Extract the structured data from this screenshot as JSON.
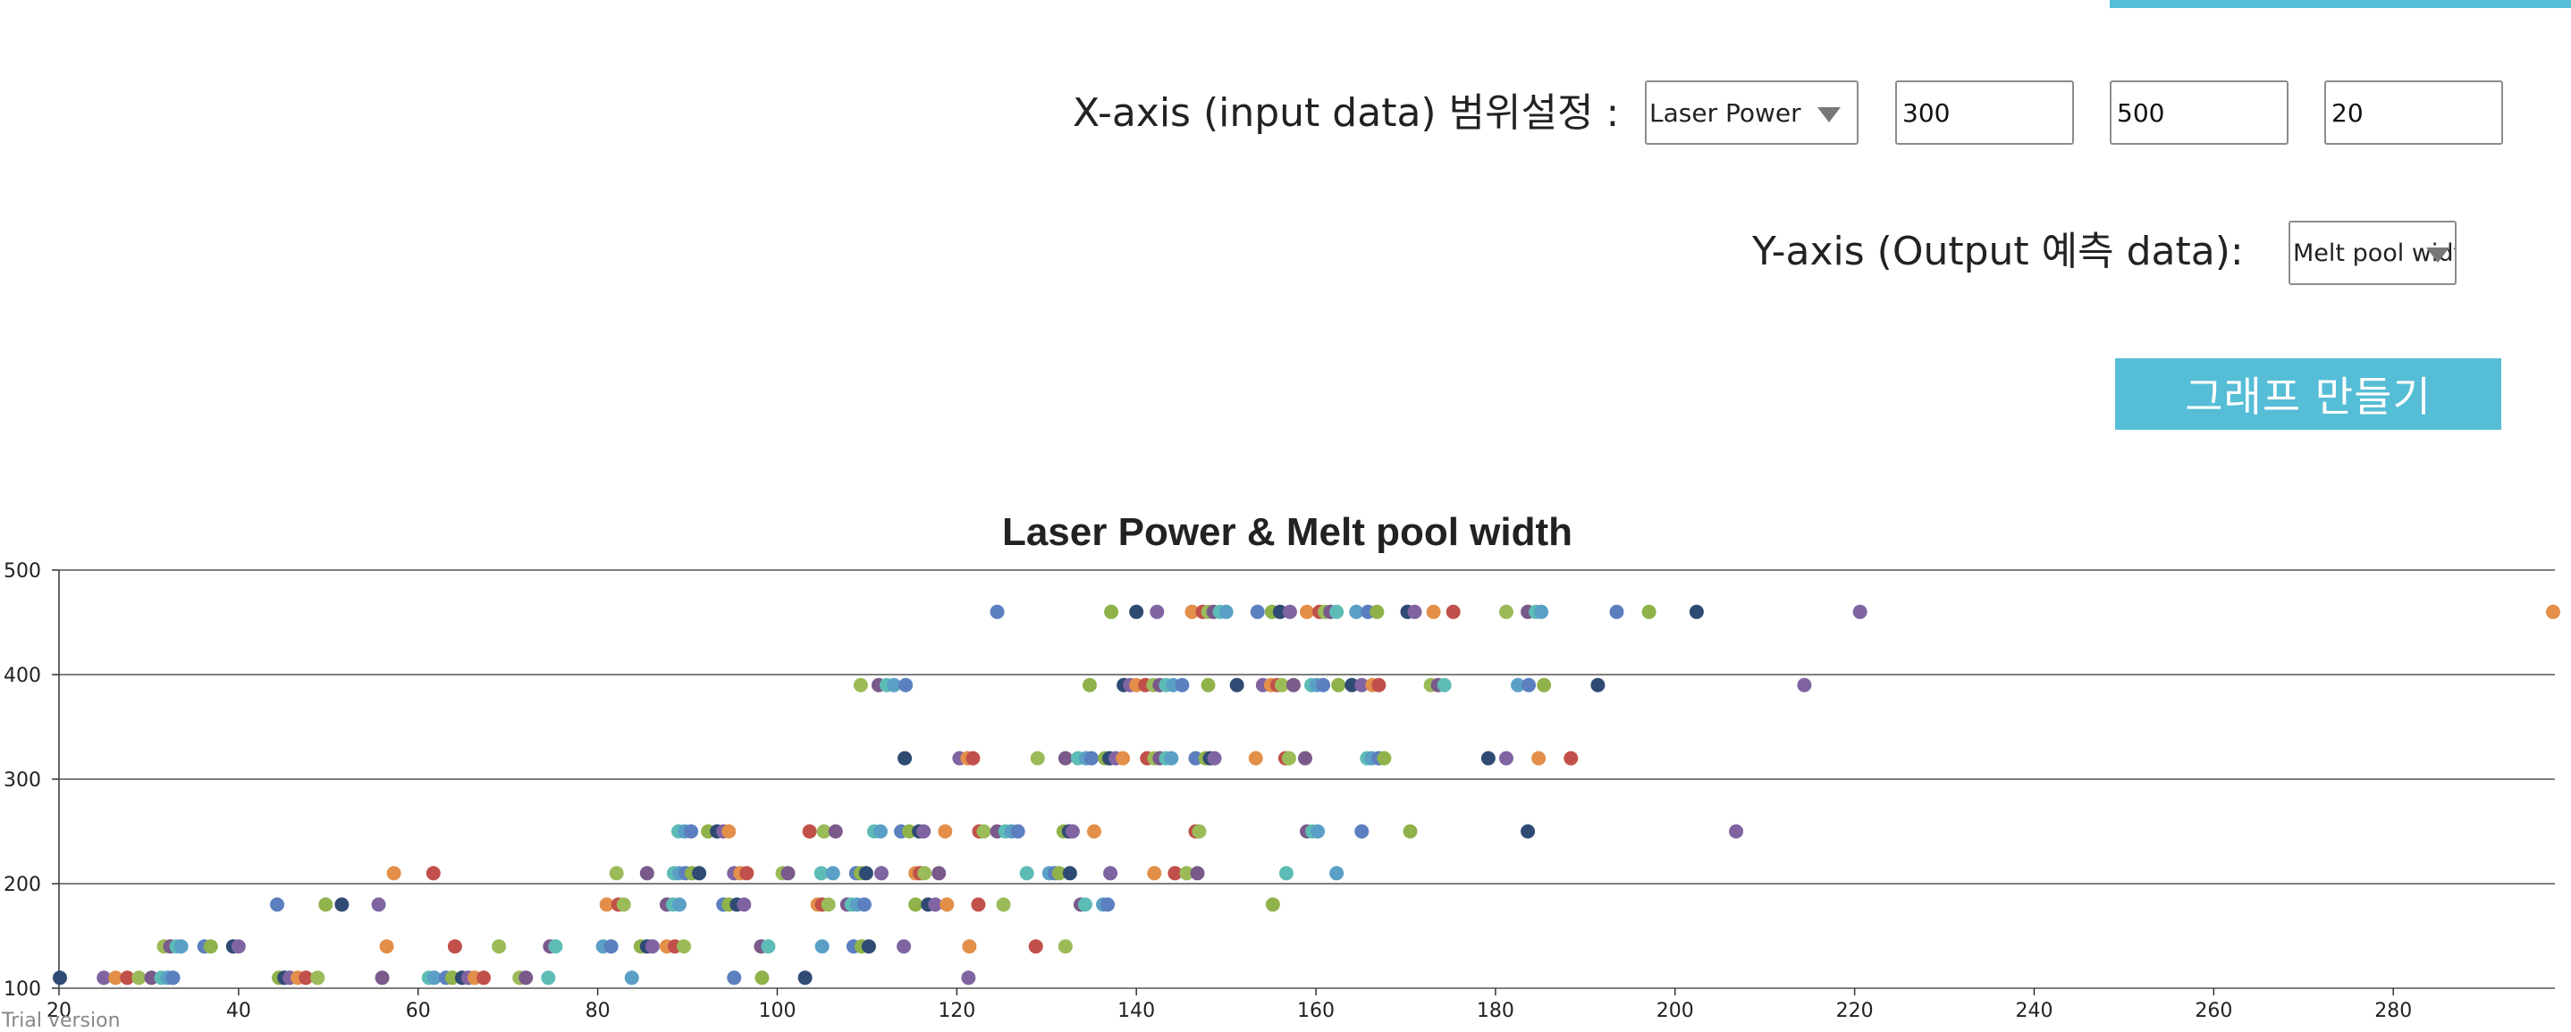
{
  "colors": {
    "accent": "#56bdd6",
    "point_palette": [
      "#5b7fbf",
      "#7a5a8a",
      "#e38f4a",
      "#8fb24a",
      "#5ebcb6",
      "#c1504a",
      "#2f4b74",
      "#5aa0c6",
      "#9bbb59",
      "#8064a2"
    ]
  },
  "controls": {
    "x_axis_label": "X-axis (input data) 범위설정 :",
    "x_select_value": "Laser Power",
    "x_min": "300",
    "x_max": "500",
    "x_step": "20",
    "y_axis_label": "Y-axis (Output 예측 data):",
    "y_select_value": "Melt pool width",
    "make_graph_button": "그래프 만들기"
  },
  "footer": {
    "trial_text": "Trial version"
  },
  "chart_data": {
    "type": "scatter",
    "title": "Laser Power & Melt pool width",
    "xlabel": "",
    "ylabel": "",
    "xlim": [
      20,
      298
    ],
    "ylim": [
      100,
      500
    ],
    "x_ticks": [
      20,
      40,
      60,
      80,
      100,
      120,
      140,
      160,
      180,
      200,
      220,
      240,
      260,
      280
    ],
    "y_ticks": [
      100,
      200,
      300,
      400,
      500
    ],
    "grid": {
      "horizontal": true,
      "vertical": false
    },
    "legend": "none",
    "series": [
      {
        "values_y": 460,
        "x": [
          124.5,
          137.2,
          140.0,
          142.3,
          146.2,
          147.4,
          148.0,
          148.6,
          149.3,
          150.0,
          153.5,
          155.1,
          156.0,
          157.1,
          159.0,
          160.4,
          161.0,
          161.6,
          162.3,
          164.5,
          165.8,
          166.8,
          170.2,
          171.0,
          173.1,
          175.3,
          181.2,
          183.6,
          184.5,
          185.1,
          193.5,
          197.1,
          202.4,
          220.6,
          297.8
        ]
      },
      {
        "values_y": 390,
        "x": [
          109.3,
          111.3,
          112.2,
          113.0,
          114.3,
          134.8,
          138.6,
          139.3,
          140.0,
          141.0,
          141.9,
          142.6,
          143.3,
          144.1,
          145.1,
          148.0,
          151.2,
          154.1,
          155.0,
          155.7,
          156.2,
          157.5,
          159.5,
          160.1,
          160.8,
          162.5,
          164.0,
          165.1,
          166.3,
          167.0,
          172.8,
          173.6,
          174.3,
          182.5,
          183.7,
          185.4,
          191.4,
          214.4
        ]
      },
      {
        "values_y": 320,
        "x": [
          114.2,
          120.3,
          121.2,
          121.8,
          129.0,
          132.1,
          133.5,
          134.4,
          135.0,
          136.5,
          137.0,
          137.7,
          138.5,
          141.2,
          142.0,
          142.6,
          143.3,
          143.9,
          146.6,
          147.7,
          148.2,
          148.7,
          153.3,
          156.6,
          157.0,
          158.8,
          165.7,
          166.2,
          167.0,
          167.6,
          179.2,
          181.2,
          184.8,
          188.4
        ]
      },
      {
        "values_y": 250,
        "x": [
          89.0,
          89.7,
          90.4,
          92.3,
          93.3,
          94.0,
          94.6,
          103.6,
          105.2,
          106.5,
          110.8,
          111.5,
          113.8,
          114.7,
          115.8,
          116.3,
          118.7,
          122.5,
          123.0,
          124.5,
          125.4,
          126.1,
          126.8,
          131.9,
          132.5,
          132.9,
          135.3,
          146.6,
          147.0,
          159.0,
          159.6,
          160.2,
          165.1,
          170.5,
          183.6,
          206.8
        ]
      },
      {
        "values_y": 210,
        "x": [
          57.3,
          61.7,
          82.1,
          85.5,
          88.5,
          89.1,
          89.8,
          90.5,
          91.3,
          95.2,
          95.9,
          96.6,
          100.6,
          101.2,
          104.9,
          106.2,
          108.8,
          109.3,
          109.9,
          111.6,
          115.4,
          115.9,
          116.4,
          118.0,
          127.8,
          130.3,
          130.9,
          131.4,
          132.6,
          137.1,
          142.0,
          144.3,
          145.6,
          146.8,
          156.7,
          162.3
        ]
      },
      {
        "values_y": 180,
        "x": [
          44.3,
          49.7,
          51.5,
          55.6,
          81.0,
          82.3,
          82.9,
          87.7,
          88.4,
          89.1,
          94.0,
          94.6,
          95.5,
          96.3,
          104.5,
          105.0,
          105.7,
          107.8,
          108.3,
          108.9,
          109.7,
          115.4,
          116.8,
          117.6,
          118.9,
          122.4,
          125.2,
          133.8,
          134.3,
          136.3,
          136.8,
          155.2
        ]
      },
      {
        "values_y": 140,
        "x": [
          31.7,
          32.4,
          33.1,
          33.6,
          36.2,
          36.9,
          39.4,
          40.0,
          56.5,
          64.1,
          69.0,
          74.7,
          75.3,
          80.6,
          81.5,
          84.8,
          85.5,
          86.1,
          87.7,
          88.6,
          89.6,
          98.2,
          99.0,
          105.0,
          108.5,
          109.4,
          110.2,
          114.1,
          121.4,
          128.8,
          132.1
        ]
      },
      {
        "values_y": 110,
        "x": [
          20.1,
          25.0,
          26.3,
          27.6,
          28.9,
          30.3,
          31.4,
          32.1,
          32.7,
          44.5,
          45.1,
          45.7,
          46.6,
          47.5,
          48.8,
          56.0,
          61.2,
          61.8,
          63.1,
          63.8,
          64.9,
          65.6,
          66.3,
          67.3,
          71.3,
          72.0,
          74.5,
          83.8,
          95.2,
          98.3,
          103.1,
          121.3
        ]
      }
    ]
  }
}
